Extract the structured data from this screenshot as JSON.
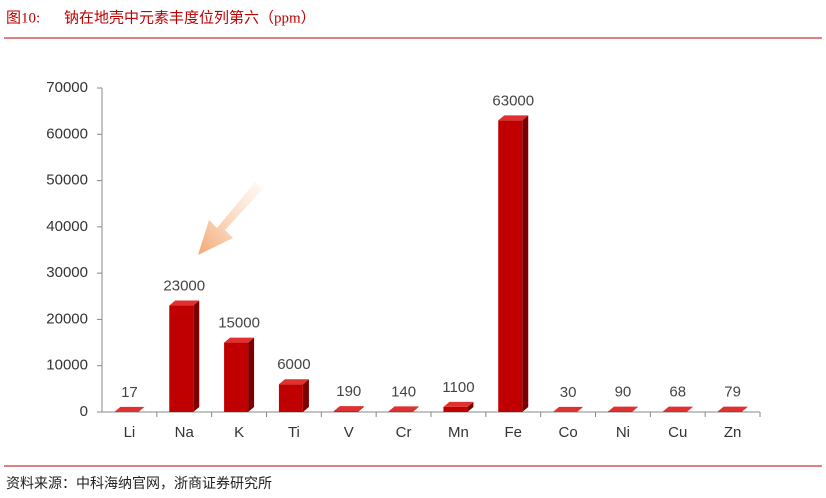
{
  "figure_label": "图10:",
  "source": "资料来源：中科海纳官网，浙商证券研究所",
  "chart_data": {
    "type": "bar3d",
    "title": "钠在地壳中元素丰度位列第六（ppm）",
    "categories": [
      "Li",
      "Na",
      "K",
      "Ti",
      "V",
      "Cr",
      "Mn",
      "Fe",
      "Co",
      "Ni",
      "Cu",
      "Zn"
    ],
    "values": [
      17,
      23000,
      15000,
      6000,
      190,
      140,
      1100,
      63000,
      30,
      90,
      68,
      79
    ],
    "color": "#c00000",
    "ylim": [
      0,
      70000
    ],
    "yticks": [
      0,
      10000,
      20000,
      30000,
      40000,
      50000,
      60000,
      70000
    ]
  }
}
